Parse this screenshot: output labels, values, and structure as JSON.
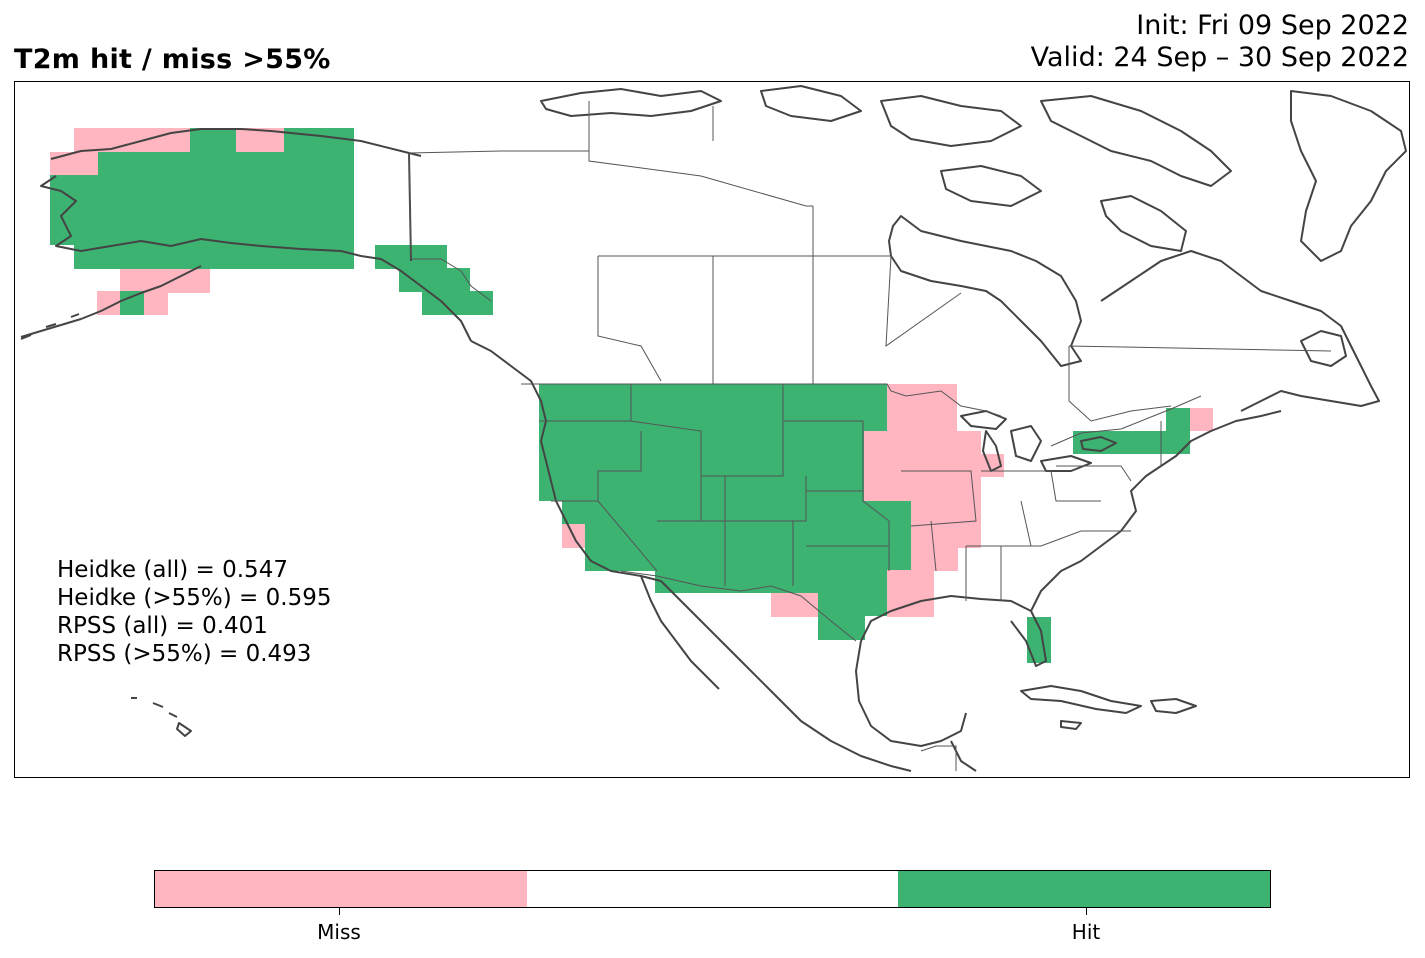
{
  "title": "T2m hit / miss  >55%",
  "init_line": "Init: Fri 09 Sep 2022",
  "valid_line": "Valid: 24 Sep – 30 Sep 2022",
  "stats": [
    "Heidke (all) = 0.547",
    "Heidke (>55%) = 0.595",
    "RPSS (all) = 0.401",
    "RPSS (>55%) = 0.493"
  ],
  "colors": {
    "miss": "#ffb6c1",
    "neutral": "#ffffff",
    "hit": "#3cb371",
    "coast": "#444444",
    "border": "#555555"
  },
  "colorbar": {
    "labels": [
      "Miss",
      "Hit"
    ]
  }
}
